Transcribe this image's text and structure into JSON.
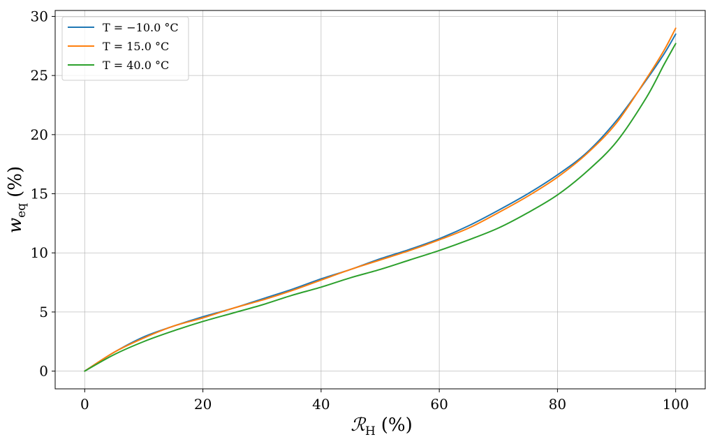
{
  "chart_data": {
    "type": "line",
    "title": "",
    "xlabel": {
      "main": "ℛ",
      "sub": "H",
      "unit": "(%)"
    },
    "ylabel": {
      "main": "w",
      "sub": "eq",
      "unit": "(%)"
    },
    "xlim": [
      -5,
      105
    ],
    "ylim": [
      -1.5,
      30.5
    ],
    "xticks": [
      0,
      20,
      40,
      60,
      80,
      100
    ],
    "yticks": [
      0,
      5,
      10,
      15,
      20,
      25,
      30
    ],
    "grid": true,
    "legend_position": "top-left",
    "x": [
      0,
      5,
      10,
      15,
      20,
      25,
      30,
      35,
      40,
      45,
      50,
      55,
      60,
      65,
      70,
      75,
      80,
      85,
      90,
      95,
      98,
      100
    ],
    "series": [
      {
        "name": "T = −10.0 °C",
        "color": "#1f77b4",
        "values": [
          0,
          1.6,
          2.9,
          3.8,
          4.6,
          5.3,
          6.1,
          6.9,
          7.8,
          8.6,
          9.5,
          10.3,
          11.2,
          12.3,
          13.6,
          15.0,
          16.6,
          18.5,
          21.2,
          24.6,
          26.8,
          28.5
        ]
      },
      {
        "name": "T = 15.0 °C",
        "color": "#ff7f0e",
        "values": [
          0,
          1.6,
          2.8,
          3.8,
          4.5,
          5.3,
          6.0,
          6.8,
          7.7,
          8.6,
          9.4,
          10.2,
          11.1,
          12.1,
          13.4,
          14.8,
          16.4,
          18.4,
          21.0,
          24.7,
          27.1,
          29.0
        ]
      },
      {
        "name": "T = 40.0 °C",
        "color": "#2ca02c",
        "values": [
          0,
          1.4,
          2.5,
          3.4,
          4.2,
          4.9,
          5.6,
          6.4,
          7.1,
          7.9,
          8.6,
          9.4,
          10.2,
          11.1,
          12.1,
          13.4,
          14.9,
          16.9,
          19.4,
          23.1,
          25.9,
          27.7
        ]
      }
    ]
  }
}
